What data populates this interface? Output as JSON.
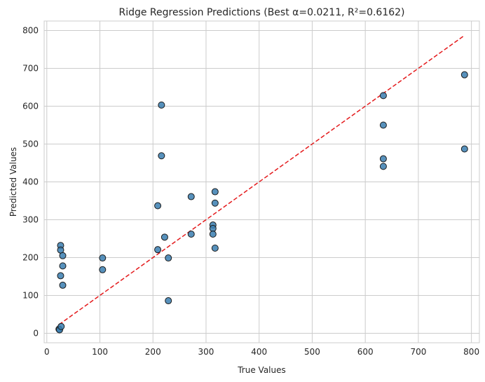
{
  "chart_data": {
    "type": "scatter",
    "title": "Ridge Regression Predictions (Best α=0.0211, R²=0.6162)",
    "xlabel": "True Values",
    "ylabel": "Predicted Values",
    "xlim": [
      -5,
      815
    ],
    "ylim": [
      -25,
      825
    ],
    "xticks": [
      0,
      100,
      200,
      300,
      400,
      500,
      600,
      700,
      800
    ],
    "yticks": [
      0,
      100,
      200,
      300,
      400,
      500,
      600,
      700,
      800
    ],
    "grid": true,
    "points": [
      {
        "x": 23,
        "y": 11
      },
      {
        "x": 24,
        "y": 9
      },
      {
        "x": 27,
        "y": 18
      },
      {
        "x": 26,
        "y": 232
      },
      {
        "x": 26,
        "y": 220
      },
      {
        "x": 26,
        "y": 152
      },
      {
        "x": 30,
        "y": 205
      },
      {
        "x": 30,
        "y": 178
      },
      {
        "x": 30,
        "y": 127
      },
      {
        "x": 105,
        "y": 199
      },
      {
        "x": 105,
        "y": 168
      },
      {
        "x": 209,
        "y": 337
      },
      {
        "x": 209,
        "y": 221
      },
      {
        "x": 216,
        "y": 603
      },
      {
        "x": 216,
        "y": 469
      },
      {
        "x": 222,
        "y": 254
      },
      {
        "x": 229,
        "y": 199
      },
      {
        "x": 229,
        "y": 86
      },
      {
        "x": 272,
        "y": 361
      },
      {
        "x": 272,
        "y": 262
      },
      {
        "x": 313,
        "y": 286
      },
      {
        "x": 313,
        "y": 277
      },
      {
        "x": 313,
        "y": 262
      },
      {
        "x": 317,
        "y": 374
      },
      {
        "x": 317,
        "y": 344
      },
      {
        "x": 317,
        "y": 225
      },
      {
        "x": 634,
        "y": 628
      },
      {
        "x": 634,
        "y": 550
      },
      {
        "x": 634,
        "y": 461
      },
      {
        "x": 634,
        "y": 441
      },
      {
        "x": 787,
        "y": 683
      },
      {
        "x": 787,
        "y": 487
      }
    ],
    "reference_line": {
      "x": [
        23,
        787
      ],
      "y": [
        23,
        787
      ],
      "style": "dashed",
      "color": "#e41a1c"
    },
    "point_color": "#3a7eb0",
    "point_edge_color": "#1a1a1a"
  }
}
